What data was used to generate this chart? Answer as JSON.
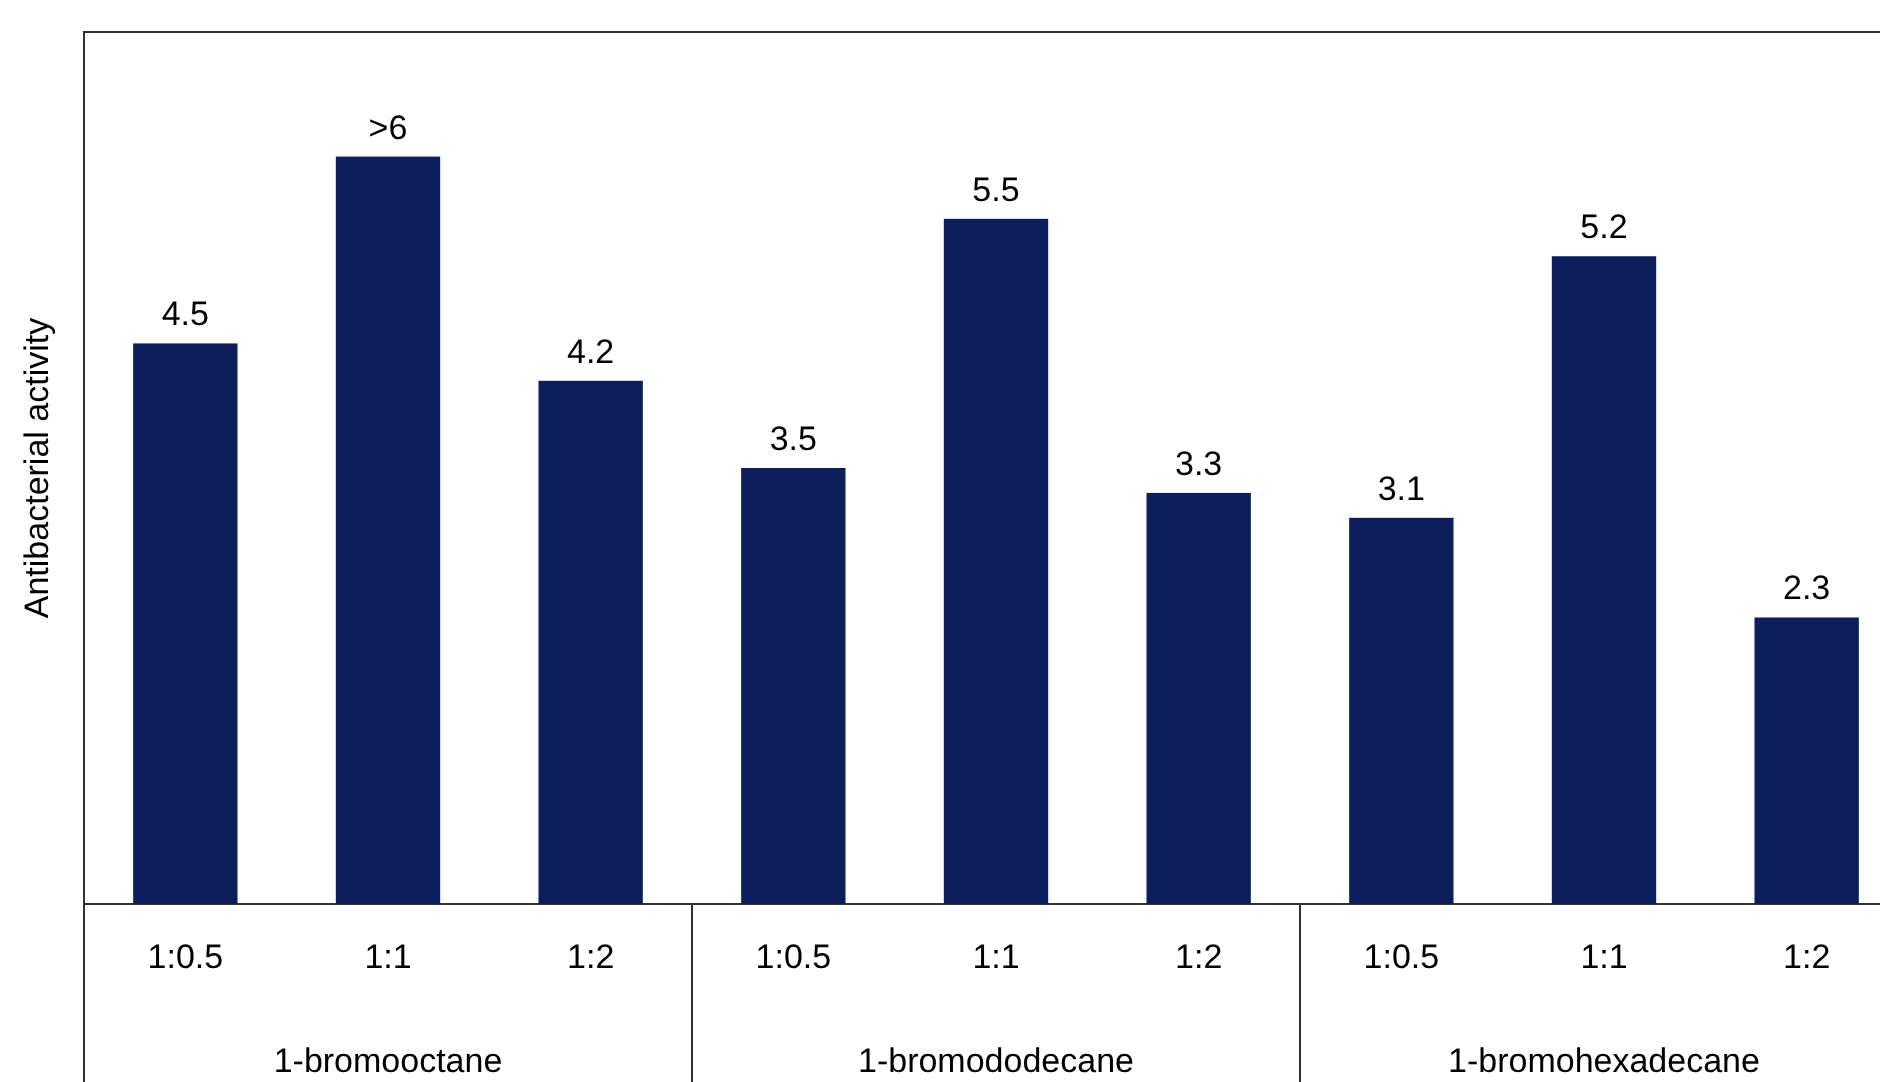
{
  "chart_data": {
    "type": "bar",
    "ylabel": "Antibacterial activity",
    "categories": [
      "1:0.5",
      "1:1",
      "1:2",
      "1:0.5",
      "1:1",
      "1:2",
      "1:0.5",
      "1:1",
      "1:2"
    ],
    "values": [
      4.5,
      6,
      4.2,
      3.5,
      5.5,
      3.3,
      3.1,
      5.2,
      2.3
    ],
    "value_labels": [
      "4.5",
      ">6",
      "4.2",
      "3.5",
      "5.5",
      "3.3",
      "3.1",
      "5.2",
      "2.3"
    ],
    "color": "#0c1f5c",
    "annotations": [
      "1-bromooctane",
      "1-bromododecane",
      "1-bromohexadecane"
    ]
  }
}
